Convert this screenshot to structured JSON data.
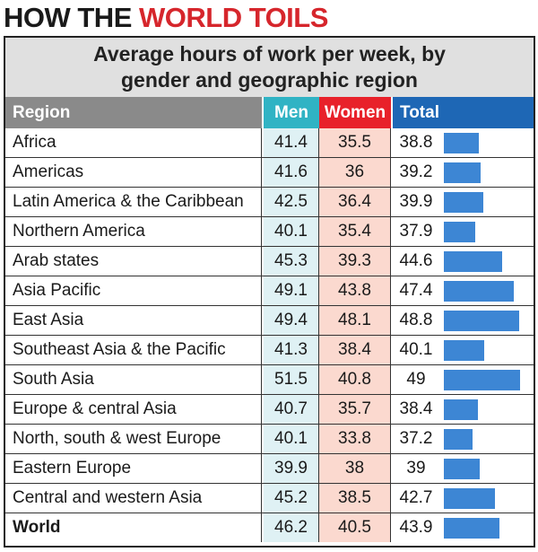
{
  "headline": {
    "part1": "HOW THE ",
    "part2": "WORLD TOILS"
  },
  "chart_data": {
    "type": "table",
    "title": "Average hours of work per week, by gender and geographic region",
    "columns": [
      "Region",
      "Men",
      "Women",
      "Total"
    ],
    "rows": [
      {
        "region": "Africa",
        "men": "41.4",
        "women": "35.5",
        "total": "38.8"
      },
      {
        "region": "Americas",
        "men": "41.6",
        "women": "36",
        "total": "39.2"
      },
      {
        "region": "Latin America & the Caribbean",
        "men": "42.5",
        "women": "36.4",
        "total": "39.9"
      },
      {
        "region": "Northern America",
        "men": "40.1",
        "women": "35.4",
        "total": "37.9"
      },
      {
        "region": "Arab states",
        "men": "45.3",
        "women": "39.3",
        "total": "44.6"
      },
      {
        "region": "Asia Pacific",
        "men": "49.1",
        "women": "43.8",
        "total": "47.4"
      },
      {
        "region": "East Asia",
        "men": "49.4",
        "women": "48.1",
        "total": "48.8"
      },
      {
        "region": "Southeast Asia & the Pacific",
        "men": "41.3",
        "women": "38.4",
        "total": "40.1"
      },
      {
        "region": "South Asia",
        "men": "51.5",
        "women": "40.8",
        "total": "49"
      },
      {
        "region": "Europe & central Asia",
        "men": "40.7",
        "women": "35.7",
        "total": "38.4"
      },
      {
        "region": "North, south & west Europe",
        "men": "40.1",
        "women": "33.8",
        "total": "37.2"
      },
      {
        "region": "Eastern Europe",
        "men": "39.9",
        "women": "38",
        "total": "39"
      },
      {
        "region": "Central and western Asia",
        "men": "45.2",
        "women": "38.5",
        "total": "42.7"
      },
      {
        "region": "World",
        "men": "46.2",
        "women": "40.5",
        "total": "43.9"
      }
    ]
  },
  "colors": {
    "headline_accent": "#d6262c",
    "men_header": "#30b3c4",
    "women_header": "#e8212a",
    "total_header": "#1e67b5",
    "men_cell": "#dff1f4",
    "women_cell": "#fbd9cf",
    "bar": "#3d86d4"
  }
}
